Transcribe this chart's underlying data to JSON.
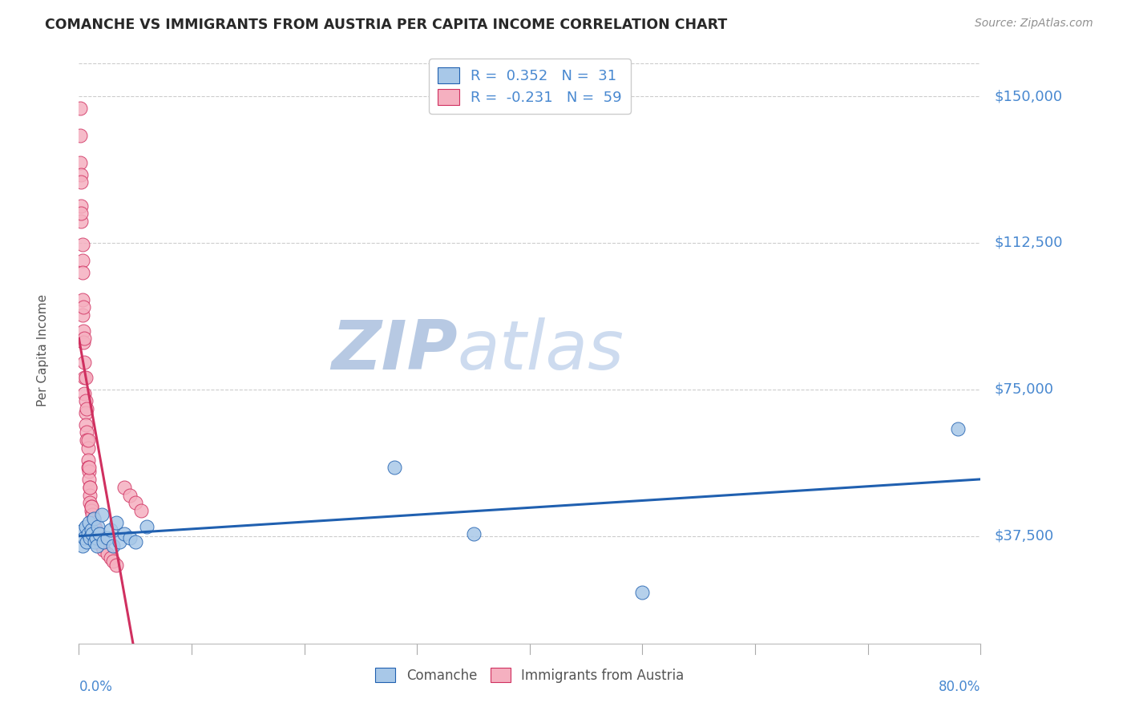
{
  "title": "COMANCHE VS IMMIGRANTS FROM AUSTRIA PER CAPITA INCOME CORRELATION CHART",
  "source": "Source: ZipAtlas.com",
  "ylabel": "Per Capita Income",
  "ytick_labels": [
    "$37,500",
    "$75,000",
    "$112,500",
    "$150,000"
  ],
  "ytick_values": [
    37500,
    75000,
    112500,
    150000
  ],
  "ymin": 10000,
  "ymax": 160000,
  "xmin": 0.0,
  "xmax": 0.8,
  "legend_blue_r": "0.352",
  "legend_blue_n": "31",
  "legend_pink_r": "-0.231",
  "legend_pink_n": "59",
  "blue_fill": "#a8c8e8",
  "pink_fill": "#f5b0c0",
  "line_blue": "#2060b0",
  "line_pink": "#d03060",
  "wm_color": "#ccd8ee",
  "title_color": "#282828",
  "axis_color": "#4888d0",
  "source_color": "#909090",
  "label_color": "#555555",
  "blue_x": [
    0.003,
    0.004,
    0.005,
    0.006,
    0.007,
    0.008,
    0.009,
    0.01,
    0.011,
    0.012,
    0.013,
    0.014,
    0.015,
    0.016,
    0.017,
    0.018,
    0.02,
    0.022,
    0.025,
    0.028,
    0.03,
    0.033,
    0.036,
    0.04,
    0.045,
    0.05,
    0.06,
    0.28,
    0.35,
    0.5,
    0.78
  ],
  "blue_y": [
    35000,
    39000,
    37000,
    40000,
    36000,
    38000,
    41000,
    37000,
    39000,
    38000,
    42000,
    36000,
    37000,
    35000,
    40000,
    38000,
    43000,
    36000,
    37000,
    39000,
    35000,
    41000,
    36000,
    38000,
    37000,
    36000,
    40000,
    55000,
    38000,
    23000,
    65000
  ],
  "pink_x": [
    0.001,
    0.001,
    0.002,
    0.002,
    0.002,
    0.003,
    0.003,
    0.003,
    0.004,
    0.004,
    0.005,
    0.005,
    0.005,
    0.006,
    0.006,
    0.006,
    0.007,
    0.007,
    0.008,
    0.008,
    0.008,
    0.009,
    0.009,
    0.01,
    0.01,
    0.01,
    0.011,
    0.011,
    0.012,
    0.013,
    0.013,
    0.014,
    0.015,
    0.016,
    0.017,
    0.018,
    0.02,
    0.022,
    0.025,
    0.028,
    0.03,
    0.033,
    0.04,
    0.045,
    0.05,
    0.055,
    0.001,
    0.002,
    0.002,
    0.003,
    0.003,
    0.004,
    0.005,
    0.006,
    0.007,
    0.008,
    0.009,
    0.01,
    0.011
  ],
  "pink_y": [
    147000,
    133000,
    130000,
    122000,
    118000,
    108000,
    98000,
    94000,
    90000,
    87000,
    82000,
    78000,
    74000,
    72000,
    69000,
    66000,
    64000,
    62000,
    60000,
    57000,
    55000,
    54000,
    52000,
    50000,
    48000,
    46000,
    45000,
    44000,
    43000,
    42000,
    41000,
    40000,
    39000,
    38000,
    37000,
    36000,
    35000,
    34000,
    33000,
    32000,
    31000,
    30000,
    50000,
    48000,
    46000,
    44000,
    140000,
    128000,
    120000,
    112000,
    105000,
    96000,
    88000,
    78000,
    70000,
    62000,
    55000,
    50000,
    45000
  ]
}
